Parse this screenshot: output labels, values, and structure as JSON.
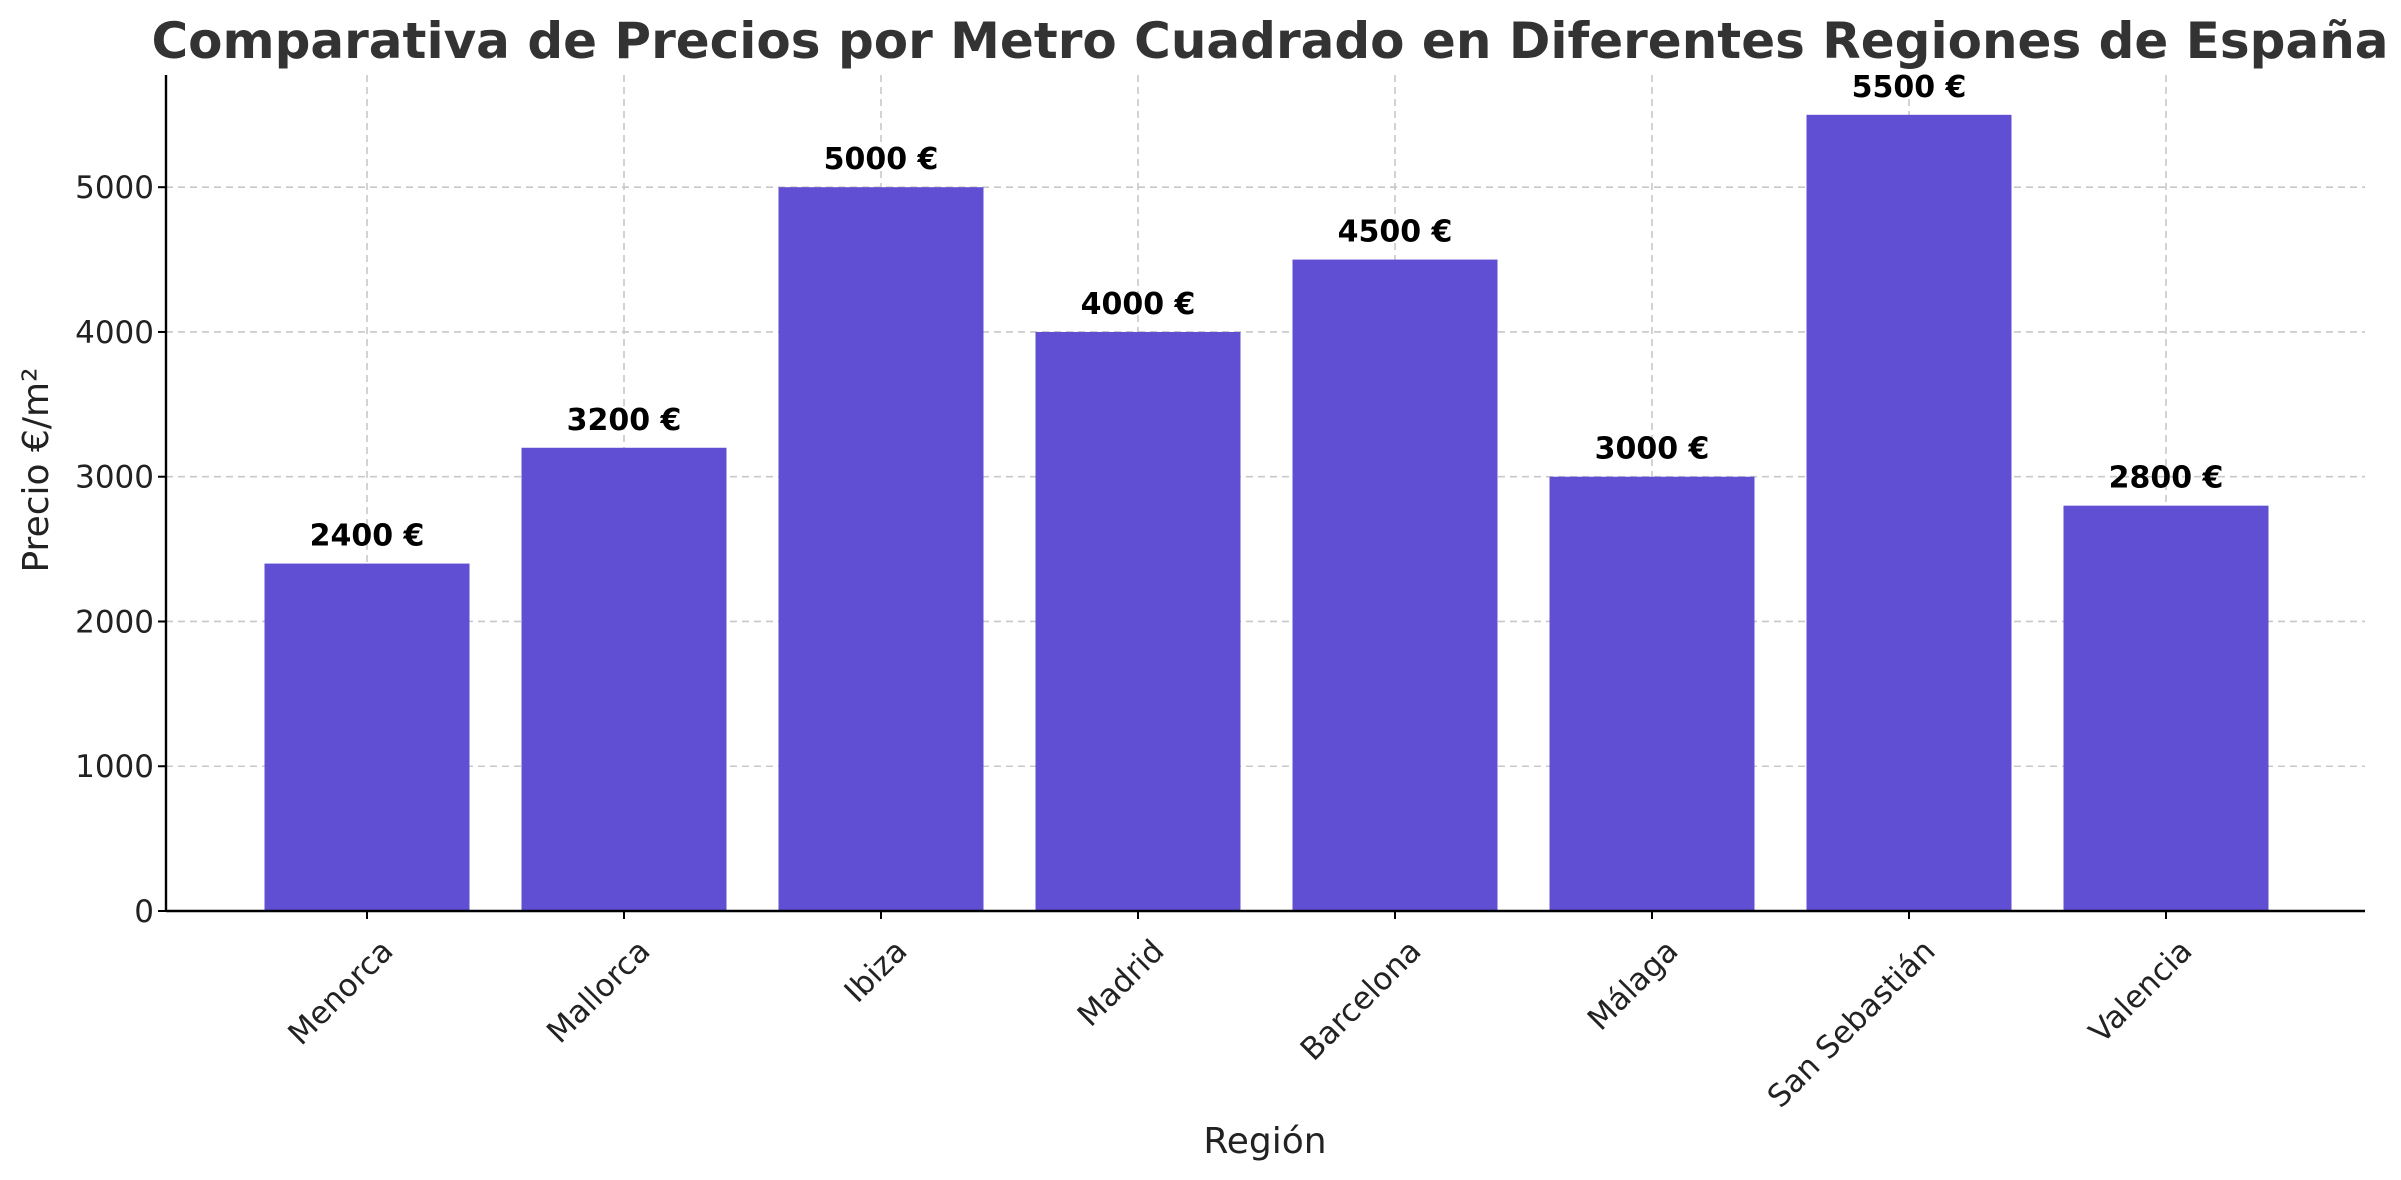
{
  "chart_data": {
    "type": "bar",
    "title": "Comparativa de Precios por Metro Cuadrado en Diferentes Regiones de España",
    "xlabel": "Región",
    "ylabel": "Precio €/m²",
    "categories": [
      "Menorca",
      "Mallorca",
      "Ibiza",
      "Madrid",
      "Barcelona",
      "Málaga",
      "San Sebastián",
      "Valencia"
    ],
    "values": [
      2400,
      3200,
      5000,
      4000,
      4500,
      3000,
      5500,
      2800
    ],
    "value_labels": [
      "2400 €",
      "3200 €",
      "5000 €",
      "4000 €",
      "4500 €",
      "3000 €",
      "5500 €",
      "2800 €"
    ],
    "yticks": [
      0,
      1000,
      2000,
      3000,
      4000,
      5000
    ],
    "ylim": [
      0,
      5775
    ],
    "grid": true,
    "bar_color": "#614fd3",
    "xtick_rotation": "45 degrees"
  }
}
